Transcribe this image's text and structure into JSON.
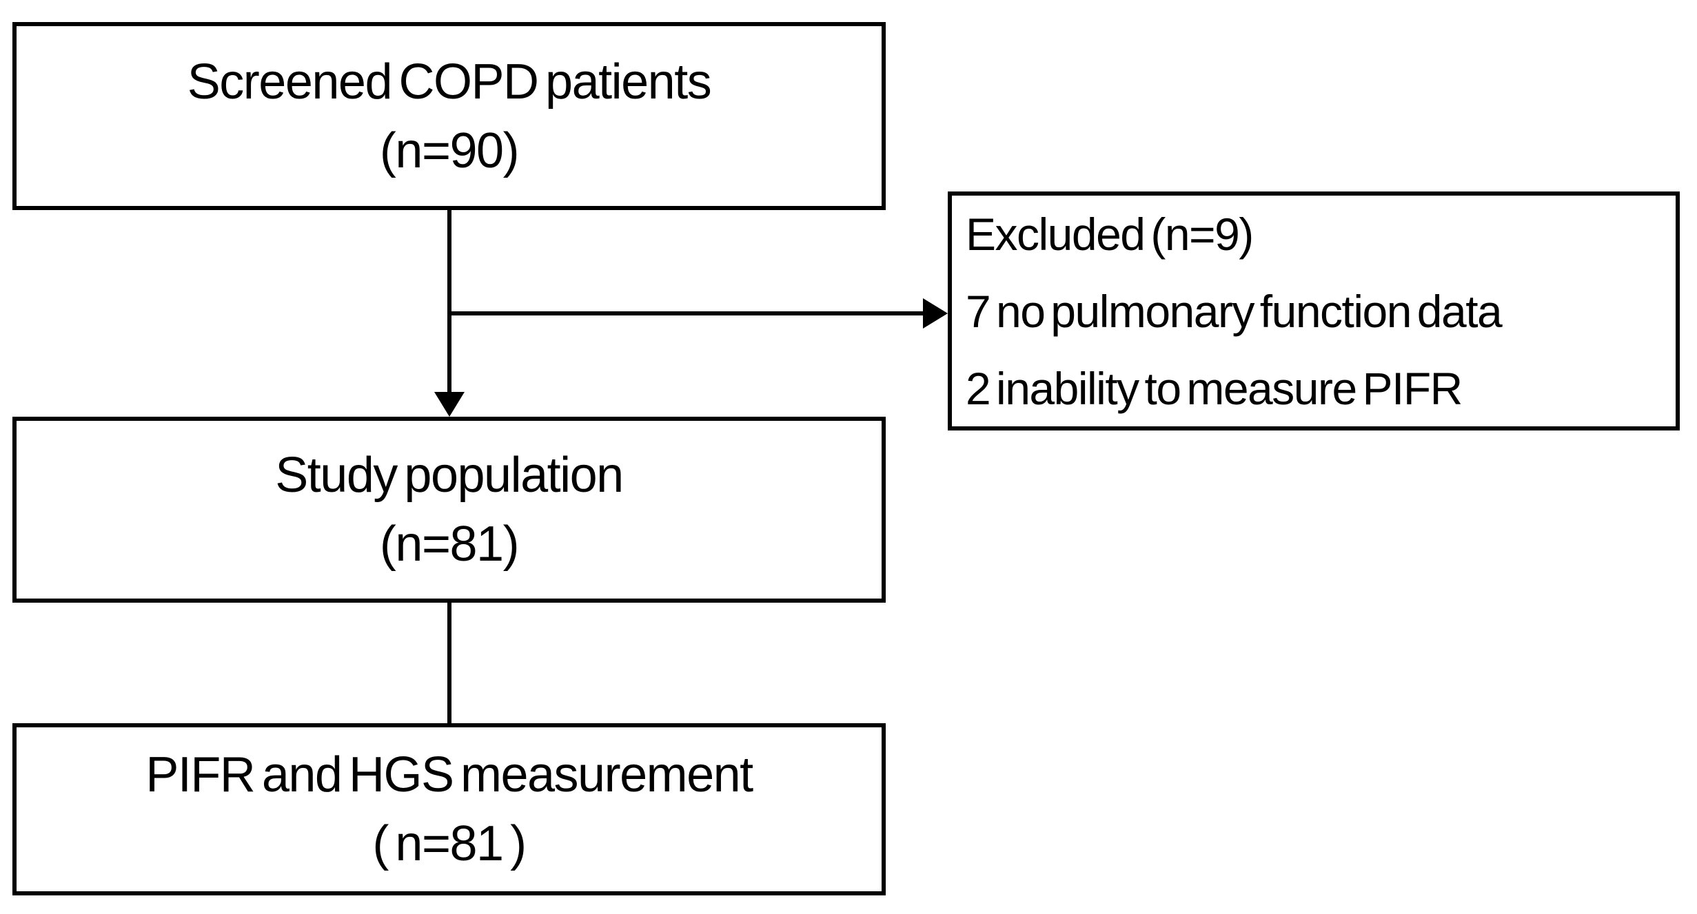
{
  "diagram": {
    "type": "flowchart",
    "colors": {
      "border": "#000000",
      "text": "#000000",
      "background": "#ffffff",
      "connector": "#000000"
    },
    "boxes": [
      {
        "id": "screened",
        "lines": [
          "Screened COPD patients",
          "(n=90)"
        ]
      },
      {
        "id": "excluded",
        "lines": [
          "Excluded (n=9)",
          "7 no pulmonary function data",
          "2 inability to measure PIFR"
        ]
      },
      {
        "id": "study",
        "lines": [
          "Study population",
          "(n=81)"
        ]
      },
      {
        "id": "measurement",
        "lines": [
          "PIFR and HGS measurement",
          "( n=81 )"
        ]
      }
    ],
    "connectors": [
      {
        "from": "screened",
        "to": "study",
        "style": "arrow-down"
      },
      {
        "from": "screened-study-branch",
        "to": "excluded",
        "style": "arrow-right"
      },
      {
        "from": "study",
        "to": "measurement",
        "style": "plain-line"
      }
    ]
  }
}
